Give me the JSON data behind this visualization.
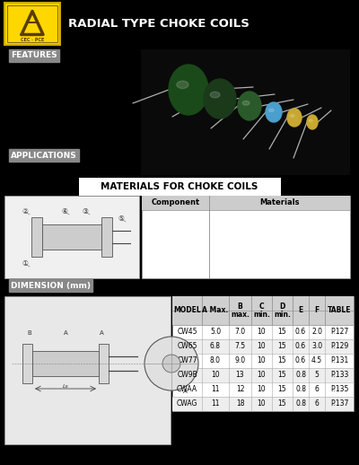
{
  "bg_color": "#000000",
  "content_bg": "#ffffff",
  "title_text": "RADIAL TYPE CHOKE COILS",
  "title_color": "#ffffff",
  "features_label": "FEATURES",
  "applications_label": "APPLICATIONS",
  "materials_title": "MATERIALS FOR CHOKE COILS",
  "materials_headers": [
    "Component",
    "Materials"
  ],
  "dimension_label": "DIMENSION (mm)",
  "table_headers_line1": [
    "MODEL",
    "A Max.",
    "B",
    "C",
    "D",
    "E",
    "F",
    "TABLE"
  ],
  "table_headers_line2": [
    "",
    "",
    "max.",
    "min.",
    "min.",
    "",
    "",
    ""
  ],
  "table_rows": [
    [
      "CW45",
      "5.0",
      "7.0",
      "10",
      "15",
      "0.6",
      "2.0",
      "P.127"
    ],
    [
      "CW65",
      "6.8",
      "7.5",
      "10",
      "15",
      "0.6",
      "3.0",
      "P.129"
    ],
    [
      "CW77",
      "8.0",
      "9.0",
      "10",
      "15",
      "0.6",
      "4.5",
      "P.131"
    ],
    [
      "CW9B",
      "10",
      "13",
      "10",
      "15",
      "0.8",
      "5",
      "P.133"
    ],
    [
      "CWAA",
      "11",
      "12",
      "10",
      "15",
      "0.8",
      "6",
      "P.135"
    ],
    [
      "CWAG",
      "11",
      "18",
      "10",
      "15",
      "0.8",
      "6",
      "P.137"
    ]
  ],
  "label_bg": "#888888",
  "label_fg": "#ffffff"
}
